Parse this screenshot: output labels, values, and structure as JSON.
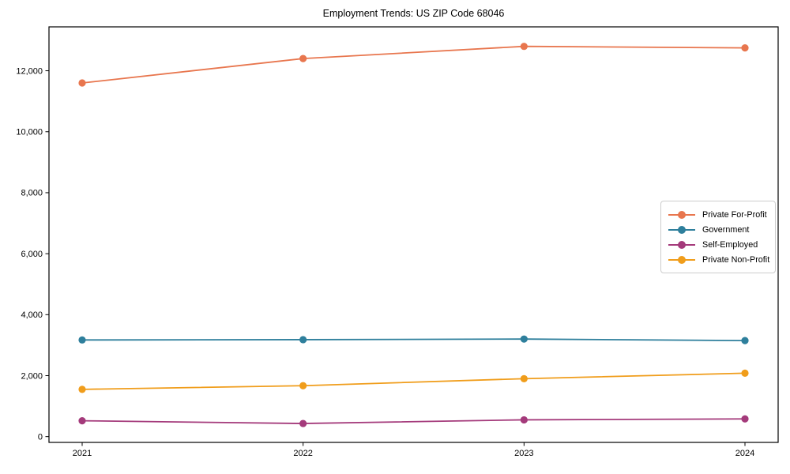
{
  "chart_data": {
    "type": "line",
    "title": "Employment Trends: US ZIP Code 68046",
    "xlabel": "",
    "ylabel": "",
    "x": [
      2021,
      2022,
      2023,
      2024
    ],
    "x_tick_labels": [
      "2021",
      "2022",
      "2023",
      "2024"
    ],
    "y_ticks": [
      0,
      2000,
      4000,
      6000,
      8000,
      10000,
      12000
    ],
    "y_tick_labels": [
      "0",
      "2,000",
      "4,000",
      "6,000",
      "8,000",
      "10,000",
      "12,000"
    ],
    "ylim": [
      -190,
      13440
    ],
    "grid": false,
    "legend_position": "center-right",
    "marker": "circle",
    "series": [
      {
        "name": "Private For-Profit",
        "color": "#e8764e",
        "values": [
          11600,
          12400,
          12800,
          12750
        ]
      },
      {
        "name": "Government",
        "color": "#2e7f9c",
        "values": [
          3170,
          3180,
          3200,
          3150
        ]
      },
      {
        "name": "Self-Employed",
        "color": "#a43a7b",
        "values": [
          520,
          430,
          550,
          580
        ]
      },
      {
        "name": "Private Non-Profit",
        "color": "#f09d1b",
        "values": [
          1550,
          1670,
          1900,
          2080
        ]
      }
    ]
  },
  "colors": {
    "frame": "#000000",
    "background": "#ffffff",
    "legend_border": "#cccccc"
  }
}
